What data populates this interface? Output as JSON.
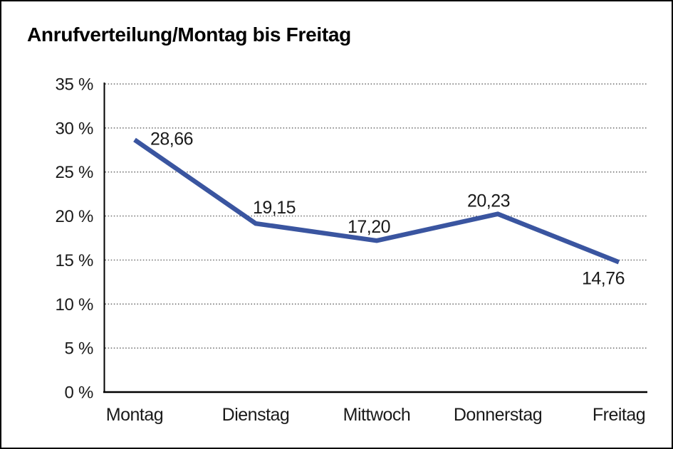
{
  "window": {
    "background_color": "#ffffff",
    "border_color": "#000000"
  },
  "chart_data": {
    "type": "line",
    "title": "Anrufverteilung/Montag bis Freitag",
    "categories": [
      "Montag",
      "Dienstag",
      "Mittwoch",
      "Donnerstag",
      "Freitag"
    ],
    "series": [
      {
        "name": "Anrufverteilung",
        "values": [
          28.66,
          19.15,
          17.2,
          20.23,
          14.76
        ],
        "point_labels": [
          "28,66",
          "19,15",
          "17,20",
          "20,23",
          "14,76"
        ],
        "color": "#3A55A0"
      }
    ],
    "xlabel": "",
    "ylabel": "",
    "unit": "%",
    "ylim": [
      0,
      35
    ],
    "y_ticks": [
      {
        "value": 0,
        "label": "0 %"
      },
      {
        "value": 5,
        "label": "5 %"
      },
      {
        "value": 10,
        "label": "10 %"
      },
      {
        "value": 15,
        "label": "15 %"
      },
      {
        "value": 20,
        "label": "20 %"
      },
      {
        "value": 25,
        "label": "25 %"
      },
      {
        "value": 30,
        "label": "30 %"
      },
      {
        "value": 35,
        "label": "35 %"
      }
    ],
    "grid": "horizontal-dotted",
    "legend": "none"
  },
  "styles": {
    "line_color": "#3A55A0",
    "grid_color": "#4a4a4a",
    "axis_color": "#000000",
    "label_color": "#1a1a1a"
  }
}
